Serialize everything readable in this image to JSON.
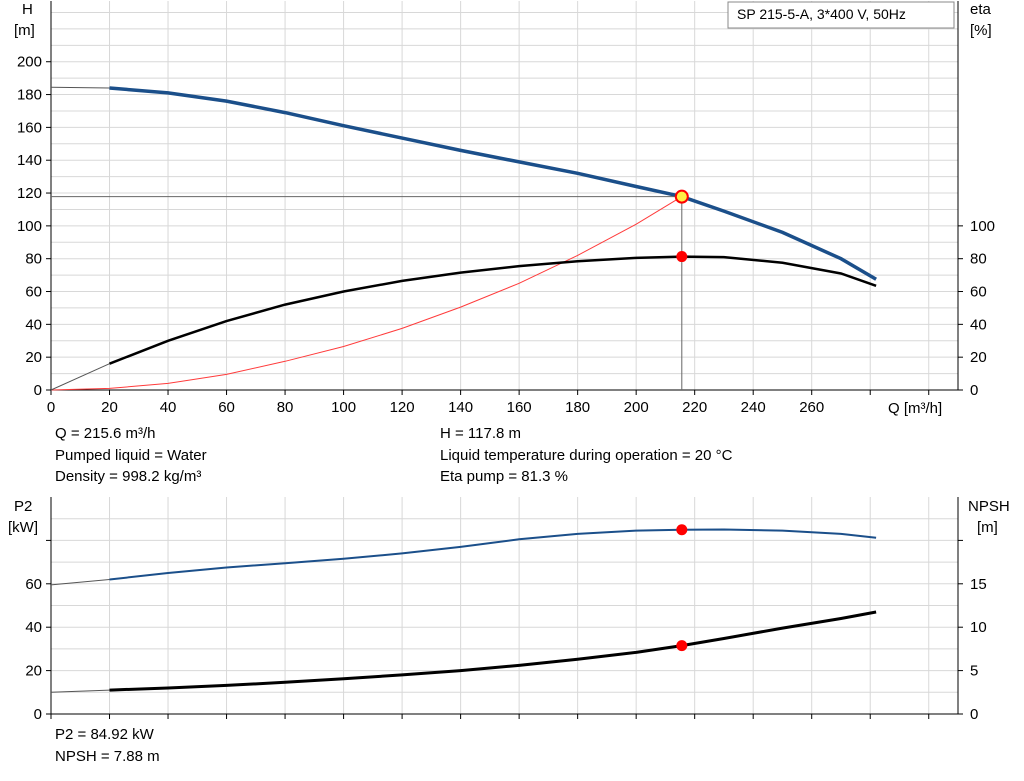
{
  "colors": {
    "head_curve": "#1b4f8a",
    "eff_curve": "#000000",
    "system_curve": "#ff3b3b",
    "duty_point": "#ff0000",
    "duty_point_head": "#ffee44",
    "grid": "#d8d8d8",
    "axis": "#000000"
  },
  "legend": {
    "title": "SP 215-5-A, 3*400 V, 50Hz"
  },
  "info_top": {
    "q": "Q = 215.6 m³/h",
    "liquid": "Pumped liquid = Water",
    "density": "Density = 998.2 kg/m³",
    "h": "H = 117.8 m",
    "temp": "Liquid temperature during operation = 20 °C",
    "eta": "Eta pump = 81.3 %"
  },
  "info_bottom": {
    "p2": "P2 = 84.92 kW",
    "npsh": "NPSH = 7.88 m"
  },
  "chart_data": [
    {
      "type": "line",
      "x_axis": {
        "label": "Q [m³/h]",
        "range": [
          0,
          310
        ],
        "ticks": [
          0,
          20,
          40,
          60,
          80,
          100,
          120,
          140,
          160,
          180,
          200,
          220,
          240,
          260
        ]
      },
      "y_axis_left": {
        "label_top": "H",
        "label_unit": "[m]",
        "range": [
          0,
          237
        ],
        "ticks": [
          0,
          20,
          40,
          60,
          80,
          100,
          120,
          140,
          160,
          180,
          200
        ]
      },
      "y_axis_right": {
        "label_top": "eta",
        "label_unit": "[%]",
        "range": [
          0,
          237
        ],
        "ticks": [
          0,
          20,
          40,
          60,
          80,
          100
        ]
      },
      "grid": true,
      "series": [
        {
          "axis": "left",
          "role": "head",
          "x": [
            0,
            20,
            40,
            60,
            80,
            100,
            120,
            140,
            160,
            180,
            200,
            215.6,
            230,
            250,
            270,
            282
          ],
          "y": [
            184.5,
            184,
            181,
            176,
            169,
            161,
            153.5,
            146,
            139,
            132,
            124,
            117.8,
            109,
            96,
            80,
            67.5
          ]
        },
        {
          "axis": "right",
          "role": "efficiency",
          "x": [
            0,
            20,
            40,
            60,
            80,
            100,
            120,
            140,
            160,
            180,
            200,
            215.6,
            230,
            250,
            270,
            282
          ],
          "y": [
            0,
            16,
            30,
            42,
            52,
            60,
            66.5,
            71.5,
            75.5,
            78.5,
            80.5,
            81.3,
            81,
            77.5,
            71,
            63.5
          ]
        },
        {
          "axis": "left",
          "role": "system",
          "x": [
            0,
            20,
            40,
            60,
            80,
            100,
            120,
            140,
            160,
            180,
            200,
            215.6
          ],
          "y": [
            0,
            1,
            4,
            9.5,
            17.5,
            26.5,
            37.5,
            50.5,
            65,
            82,
            101,
            117.8
          ]
        }
      ],
      "duty_point": {
        "q": 215.6,
        "h": 117.8,
        "eta": 81.3
      }
    },
    {
      "type": "line",
      "x_axis": {
        "label": "",
        "range": [
          0,
          310
        ]
      },
      "y_axis_left": {
        "label_top": "P2",
        "label_unit": "[kW]",
        "range": [
          0,
          80
        ],
        "ticks": [
          0,
          20,
          40,
          60
        ]
      },
      "y_axis_right": {
        "label_top": "NPSH",
        "label_unit": "[m]",
        "range": [
          0,
          20
        ],
        "ticks": [
          0,
          5,
          10,
          15
        ]
      },
      "grid": true,
      "series": [
        {
          "axis": "left",
          "role": "power",
          "x": [
            0,
            20,
            40,
            60,
            80,
            100,
            120,
            140,
            160,
            180,
            200,
            215.6,
            230,
            250,
            270,
            282
          ],
          "y": [
            59.5,
            62,
            65,
            67.5,
            69.5,
            71.5,
            74,
            77,
            80.5,
            83,
            84.5,
            84.92,
            85,
            84.5,
            83,
            81.2
          ]
        },
        {
          "axis": "right",
          "role": "npsh",
          "x": [
            0,
            20,
            40,
            60,
            80,
            100,
            120,
            140,
            160,
            180,
            200,
            215.6,
            230,
            250,
            270,
            282
          ],
          "y": [
            2.5,
            2.75,
            3.0,
            3.3,
            3.65,
            4.05,
            4.5,
            5.0,
            5.6,
            6.3,
            7.1,
            7.88,
            8.7,
            9.9,
            11.0,
            11.75
          ]
        }
      ],
      "duty_point": {
        "q": 215.6,
        "p2": 84.92,
        "npsh": 7.88
      }
    }
  ]
}
